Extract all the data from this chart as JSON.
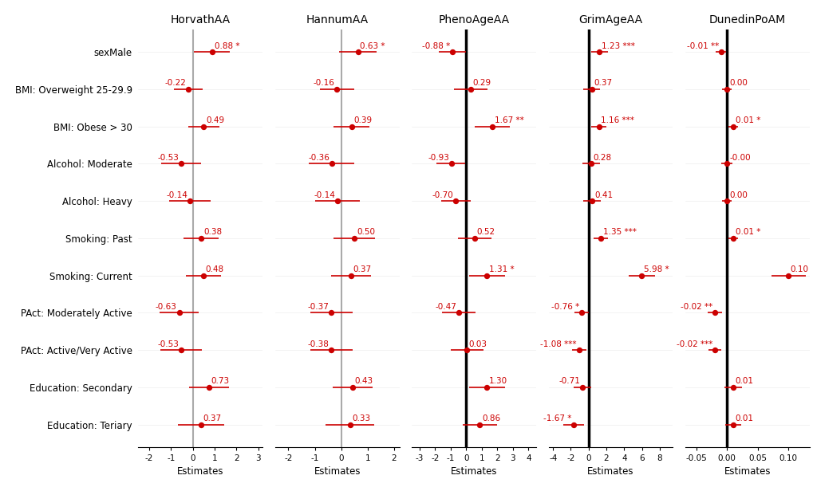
{
  "panels": [
    {
      "title": "HorvathAA",
      "xlim": [
        -2.5,
        3.2
      ],
      "xticks": [
        -2,
        -1,
        0,
        1,
        2,
        3
      ],
      "xtick_labels": [
        "-2",
        "-1",
        "0",
        "1",
        "2",
        "3"
      ],
      "zero_color": "#aaaaaa",
      "zero_lw": 1.5,
      "estimates": [
        0.88,
        -0.22,
        0.49,
        -0.53,
        -0.14,
        0.38,
        0.48,
        -0.63,
        -0.53,
        0.73,
        0.37
      ],
      "ci_low": [
        0.05,
        -0.88,
        -0.22,
        -1.45,
        -1.08,
        -0.42,
        -0.32,
        -1.52,
        -1.48,
        -0.18,
        -0.68
      ],
      "ci_high": [
        1.71,
        0.44,
        1.2,
        0.39,
        0.8,
        1.18,
        1.28,
        0.26,
        0.42,
        1.64,
        1.42
      ],
      "labels": [
        "0.88 *",
        "-0.22",
        "0.49",
        "-0.53",
        "-0.14",
        "0.38",
        "0.48",
        "-0.63",
        "-0.53",
        "0.73",
        "0.37"
      ],
      "label_side": [
        "right",
        "left",
        "right",
        "left",
        "left",
        "right",
        "right",
        "left",
        "left",
        "right",
        "right"
      ]
    },
    {
      "title": "HannumAA",
      "xlim": [
        -2.5,
        2.2
      ],
      "xticks": [
        -2,
        -1,
        0,
        1,
        2
      ],
      "xtick_labels": [
        "-2",
        "-1",
        "0",
        "1",
        "2"
      ],
      "zero_color": "#aaaaaa",
      "zero_lw": 1.5,
      "estimates": [
        0.63,
        -0.16,
        0.39,
        -0.36,
        -0.14,
        0.5,
        0.37,
        -0.37,
        -0.38,
        0.43,
        0.33
      ],
      "ci_low": [
        -0.08,
        -0.82,
        -0.28,
        -1.22,
        -0.98,
        -0.28,
        -0.38,
        -1.18,
        -1.18,
        -0.32,
        -0.58
      ],
      "ci_high": [
        1.34,
        0.5,
        1.06,
        0.5,
        0.7,
        1.28,
        1.12,
        0.44,
        0.42,
        1.18,
        1.24
      ],
      "labels": [
        "0.63 *",
        "-0.16",
        "0.39",
        "-0.36",
        "-0.14",
        "0.50",
        "0.37",
        "-0.37",
        "-0.38",
        "0.43",
        "0.33"
      ],
      "label_side": [
        "right",
        "left",
        "right",
        "left",
        "left",
        "right",
        "right",
        "left",
        "left",
        "right",
        "right"
      ]
    },
    {
      "title": "PhenoAgeAA",
      "xlim": [
        -3.5,
        4.5
      ],
      "xticks": [
        -3,
        -2,
        -1,
        0,
        1,
        2,
        3,
        4
      ],
      "xtick_labels": [
        "-3",
        "-2",
        "-1",
        "0",
        "1",
        "2",
        "3",
        "4"
      ],
      "zero_color": "#000000",
      "zero_lw": 2.5,
      "estimates": [
        -0.88,
        0.29,
        1.67,
        -0.93,
        -0.7,
        0.52,
        1.31,
        -0.47,
        0.03,
        1.3,
        0.86
      ],
      "ci_low": [
        -1.78,
        -0.78,
        0.52,
        -1.92,
        -1.62,
        -0.52,
        0.18,
        -1.58,
        -1.02,
        0.16,
        -0.24
      ],
      "ci_high": [
        -0.02,
        1.36,
        2.82,
        -0.06,
        0.28,
        1.6,
        2.48,
        0.62,
        1.12,
        2.48,
        2.0
      ],
      "labels": [
        "-0.88 *",
        "0.29",
        "1.67 **",
        "-0.93",
        "-0.70",
        "0.52",
        "1.31 *",
        "-0.47",
        "0.03",
        "1.30",
        "0.86"
      ],
      "label_side": [
        "left",
        "right",
        "right",
        "left",
        "left",
        "right",
        "right",
        "left",
        "right",
        "right",
        "right"
      ]
    },
    {
      "title": "GrimAgeAA",
      "xlim": [
        -4.5,
        9.5
      ],
      "xticks": [
        -4,
        -2,
        0,
        2,
        4,
        6,
        8
      ],
      "xtick_labels": [
        "-4",
        "-2",
        "0",
        "2",
        "4",
        "6",
        "8"
      ],
      "zero_color": "#000000",
      "zero_lw": 2.5,
      "estimates": [
        1.23,
        0.37,
        1.16,
        0.28,
        0.41,
        1.35,
        5.98,
        -0.76,
        -1.08,
        -0.71,
        -1.67
      ],
      "ci_low": [
        0.32,
        -0.58,
        0.32,
        -0.68,
        -0.58,
        0.52,
        4.52,
        -1.56,
        -1.88,
        -1.68,
        -2.86
      ],
      "ci_high": [
        2.14,
        1.32,
        2.0,
        1.24,
        1.4,
        2.18,
        7.44,
        0.04,
        -0.28,
        0.26,
        -0.48
      ],
      "labels": [
        "1.23 ***",
        "0.37",
        "1.16 ***",
        "0.28",
        "0.41",
        "1.35 ***",
        "5.98 *",
        "-0.76 *",
        "-1.08 ***",
        "-0.71",
        "-1.67 *"
      ],
      "label_side": [
        "right",
        "right",
        "right",
        "right",
        "right",
        "right",
        "right",
        "left",
        "left",
        "left",
        "left"
      ]
    },
    {
      "title": "DunedinPoAM",
      "xlim": [
        -0.068,
        0.135
      ],
      "xticks": [
        -0.05,
        0.0,
        0.05,
        0.1
      ],
      "xtick_labels": [
        "-0.05",
        "0.00",
        "0.05",
        "0.10"
      ],
      "zero_color": "#000000",
      "zero_lw": 2.5,
      "estimates": [
        -0.01,
        0.0,
        0.01,
        -0.0,
        0.0,
        0.01,
        0.1,
        -0.02,
        -0.02,
        0.01,
        0.01
      ],
      "ci_low": [
        -0.018,
        -0.008,
        0.002,
        -0.01,
        -0.008,
        0.002,
        0.072,
        -0.032,
        -0.03,
        -0.004,
        -0.003
      ],
      "ci_high": [
        -0.002,
        0.008,
        0.018,
        0.009,
        0.008,
        0.018,
        0.128,
        -0.008,
        -0.01,
        0.024,
        0.023
      ],
      "labels": [
        "-0.01 **",
        "0.00",
        "0.01 *",
        "-0.00",
        "0.00",
        "0.01 *",
        "0.10",
        "-0.02 **",
        "-0.02 ***",
        "0.01",
        "0.01"
      ],
      "label_side": [
        "left",
        "right",
        "right",
        "right",
        "right",
        "right",
        "right",
        "left",
        "left",
        "right",
        "right"
      ]
    }
  ],
  "ylabels": [
    "sexMale",
    "BMI: Overweight 25-29.9",
    "BMI: Obese > 30",
    "Alcohol: Moderate",
    "Alcohol: Heavy",
    "Smoking: Past",
    "Smoking: Current",
    "PAct: Moderately Active",
    "PAct: Active/Very Active",
    "Education: Secondary",
    "Education: Teriary"
  ],
  "dot_color": "#cc0000",
  "line_color": "#cc0000",
  "dot_size": 28,
  "xlabel": "Estimates",
  "title_fontsize": 10,
  "label_fontsize": 8.5,
  "tick_fontsize": 7.5,
  "annot_fontsize": 7.5
}
